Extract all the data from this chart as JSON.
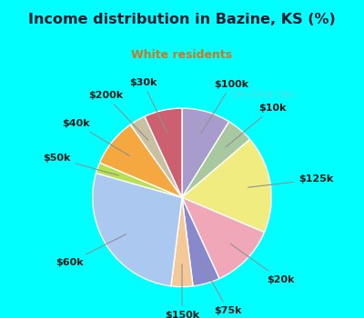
{
  "title": "Income distribution in Bazine, KS (%)",
  "subtitle": "White residents",
  "title_color": "#1a1a2e",
  "subtitle_color": "#cc7722",
  "bg_cyan": "#00ffff",
  "bg_chart": "#e0f0e8",
  "labels": [
    "$100k",
    "$10k",
    "$125k",
    "$20k",
    "$75k",
    "$150k",
    "$60k",
    "$50k",
    "$40k",
    "$200k",
    "$30k"
  ],
  "sizes": [
    9,
    5,
    18,
    12,
    5,
    4,
    28,
    2,
    9,
    3,
    7
  ],
  "colors": [
    "#a89ccc",
    "#a8c8a0",
    "#f0ec80",
    "#f0a8b8",
    "#8888cc",
    "#f5c898",
    "#aac8f0",
    "#b8e050",
    "#f5a840",
    "#c8c0a0",
    "#cc6070"
  ],
  "startangle": 90,
  "counterclock": false,
  "label_fontsize": 8,
  "label_color": "#1a1a1a",
  "line_color": "#909090",
  "wedge_edge_color": "#ffffff",
  "wedge_linewidth": 1.0
}
